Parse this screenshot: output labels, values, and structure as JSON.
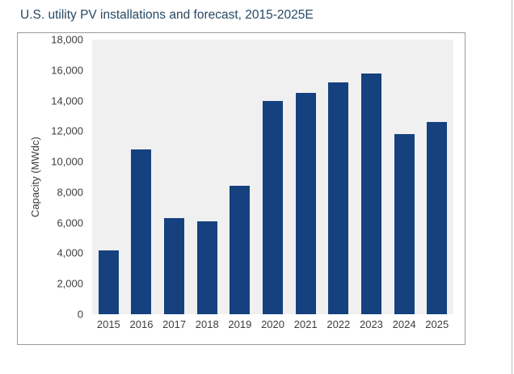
{
  "title": "U.S. utility PV installations and forecast, 2015-2025E",
  "colors": {
    "bar": "#15417F",
    "plot_background": "#F0F0F0",
    "title_text": "#274863",
    "axis_text": "#3D3D3D",
    "frame_border": "#9B9B9B"
  },
  "chart_data": {
    "type": "bar",
    "title": "U.S. utility PV installations and forecast, 2015-2025E",
    "categories": [
      "2015",
      "2016",
      "2017",
      "2018",
      "2019",
      "2020",
      "2021",
      "2022",
      "2023",
      "2024",
      "2025"
    ],
    "values": [
      4200,
      10800,
      6300,
      6100,
      8400,
      14000,
      14500,
      15200,
      15800,
      11800,
      12600
    ],
    "xlabel": "",
    "ylabel": "Capacity (MWdc)",
    "ylim": [
      0,
      18000
    ],
    "ytick_step": 2000,
    "ytick_labels": [
      "0",
      "2,000",
      "4,000",
      "6,000",
      "8,000",
      "10,000",
      "12,000",
      "14,000",
      "16,000",
      "18,000"
    ],
    "grid": false,
    "legend": false,
    "plot_background": "#F0F0F0",
    "bar_color": "#15417F"
  }
}
